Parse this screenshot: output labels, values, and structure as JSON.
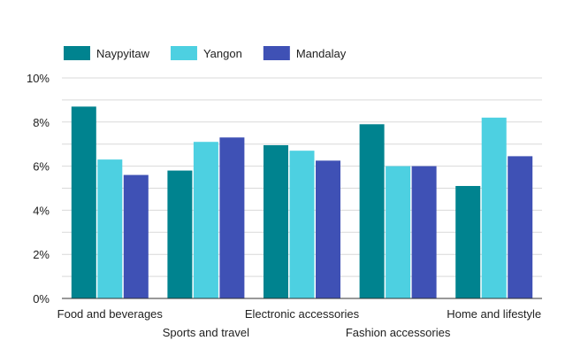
{
  "chart_data": {
    "type": "bar",
    "title": "",
    "xlabel": "",
    "ylabel": "",
    "categories": [
      "Food and beverages",
      "Sports and travel",
      "Electronic accessories",
      "Fashion accessories",
      "Home and lifestyle"
    ],
    "series": [
      {
        "name": "Naypyitaw",
        "color": "#00838f",
        "values": [
          8.7,
          5.8,
          6.95,
          7.9,
          5.1
        ]
      },
      {
        "name": "Yangon",
        "color": "#4dd0e1",
        "values": [
          6.3,
          7.1,
          6.7,
          6.0,
          8.2
        ]
      },
      {
        "name": "Mandalay",
        "color": "#3f51b5",
        "values": [
          5.6,
          7.3,
          6.25,
          6.0,
          6.45
        ]
      }
    ],
    "ylim": [
      0,
      10
    ],
    "yticks": [
      "0%",
      "2%",
      "4%",
      "6%",
      "8%",
      "10%"
    ],
    "ytick_values": [
      0,
      2,
      4,
      6,
      8,
      10
    ],
    "grid": true,
    "legend_position": "top-left"
  }
}
